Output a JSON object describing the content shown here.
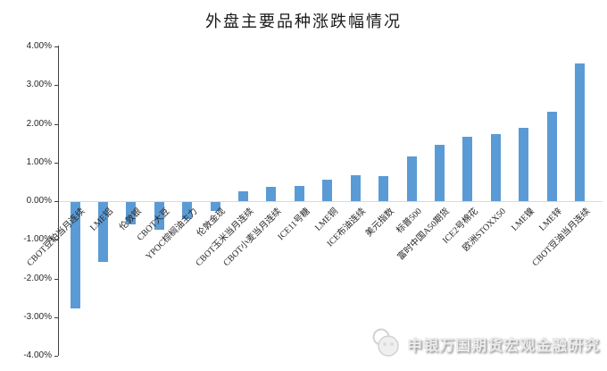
{
  "title": "外盘主要品种涨跌幅情况",
  "footer": {
    "brand": "申银万国期货宏观金融研究"
  },
  "chart_data": {
    "type": "bar",
    "title": "外盘主要品种涨跌幅情况",
    "categories": [
      "CBOT豆粕当月连续",
      "LME铝",
      "伦敦银",
      "CBOT大豆",
      "YPOC棕榈油主力",
      "伦敦金现",
      "CBOT玉米当月连续",
      "CBOT小麦当月连续",
      "ICE11号糖",
      "LME铜",
      "ICE布油连续",
      "美元指数",
      "标普500",
      "富时中国A50期货",
      "ICE2号棉花",
      "欧洲STOXX50",
      "LME镍",
      "LME锌",
      "CBOT豆油当月连续"
    ],
    "values": [
      -2.76,
      -1.54,
      -0.58,
      -0.71,
      -0.45,
      -0.23,
      0.25,
      0.37,
      0.39,
      0.55,
      0.67,
      0.65,
      1.16,
      1.46,
      1.67,
      1.73,
      1.89,
      2.32,
      3.56
    ],
    "unit": "%",
    "bar_color": "#5B9BD5",
    "ylim": [
      -4,
      4
    ],
    "ytick_step": 1,
    "yticks": [
      "4.00%",
      "3.00%",
      "2.00%",
      "1.00%",
      "0.00%",
      "-1.00%",
      "-2.00%",
      "-3.00%",
      "-4.00%"
    ],
    "grid": "zero-line-only",
    "legend": "none",
    "xlabel": "",
    "ylabel": ""
  }
}
